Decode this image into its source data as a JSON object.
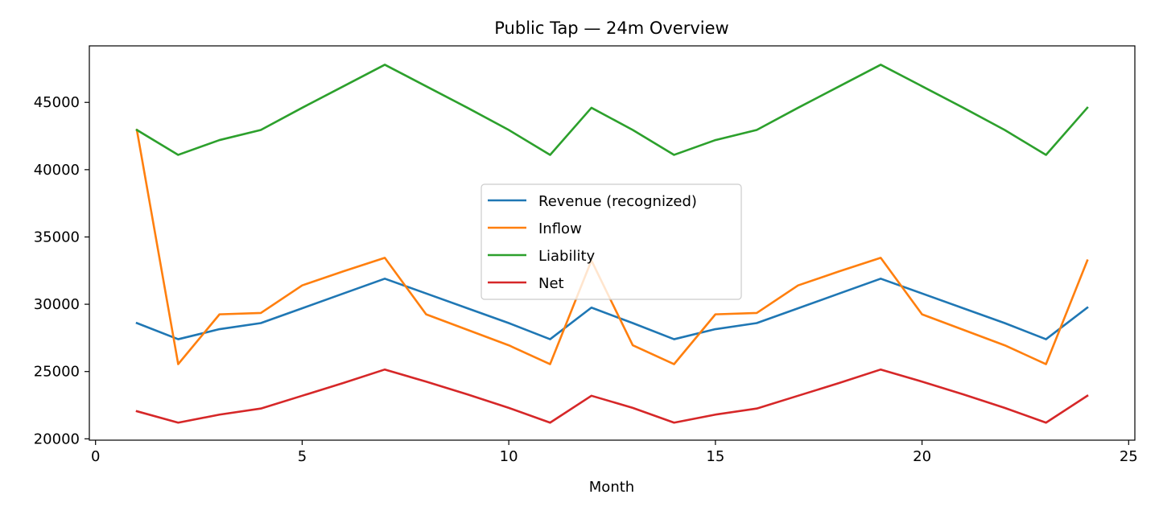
{
  "chart_data": {
    "type": "line",
    "title": "Public Tap — 24m Overview",
    "xlabel": "Month",
    "ylabel": "",
    "xlim": [
      -0.15,
      25.15
    ],
    "ylim": [
      19900,
      49200
    ],
    "xticks": [
      0,
      5,
      10,
      15,
      20,
      25
    ],
    "yticks": [
      20000,
      25000,
      30000,
      35000,
      40000,
      45000
    ],
    "grid": false,
    "legend_position": "center",
    "x": [
      1,
      2,
      3,
      4,
      5,
      6,
      7,
      8,
      9,
      10,
      11,
      12,
      13,
      14,
      15,
      16,
      17,
      18,
      19,
      20,
      21,
      22,
      23,
      24
    ],
    "series": [
      {
        "name": "Revenue (recognized)",
        "color": "#1f77b4",
        "values": [
          28600,
          27400,
          28150,
          28600,
          29700,
          30800,
          31900,
          30800,
          29700,
          28600,
          27400,
          29750,
          28600,
          27400,
          28150,
          28600,
          29700,
          30800,
          31900,
          30800,
          29700,
          28600,
          27400,
          29750
        ]
      },
      {
        "name": "Inflow",
        "color": "#ff7f0e",
        "values": [
          42950,
          25550,
          29250,
          29350,
          31400,
          32450,
          33450,
          29250,
          28100,
          26950,
          25550,
          33250,
          26950,
          25550,
          29250,
          29350,
          31400,
          32450,
          33450,
          29250,
          28100,
          26950,
          25550,
          33250
        ]
      },
      {
        "name": "Liability",
        "color": "#2ca02c",
        "values": [
          42950,
          41100,
          42200,
          42950,
          44600,
          46200,
          47800,
          46200,
          44600,
          42950,
          41100,
          44600,
          42950,
          41100,
          42200,
          42950,
          44600,
          46200,
          47800,
          46200,
          44600,
          42950,
          41100,
          44600
        ]
      },
      {
        "name": "Net",
        "color": "#d62728",
        "values": [
          22050,
          21200,
          21800,
          22250,
          23200,
          24150,
          25150,
          24250,
          23300,
          22300,
          21200,
          23200,
          22300,
          21200,
          21800,
          22250,
          23200,
          24150,
          25150,
          24250,
          23300,
          22300,
          21200,
          23200
        ]
      }
    ]
  }
}
